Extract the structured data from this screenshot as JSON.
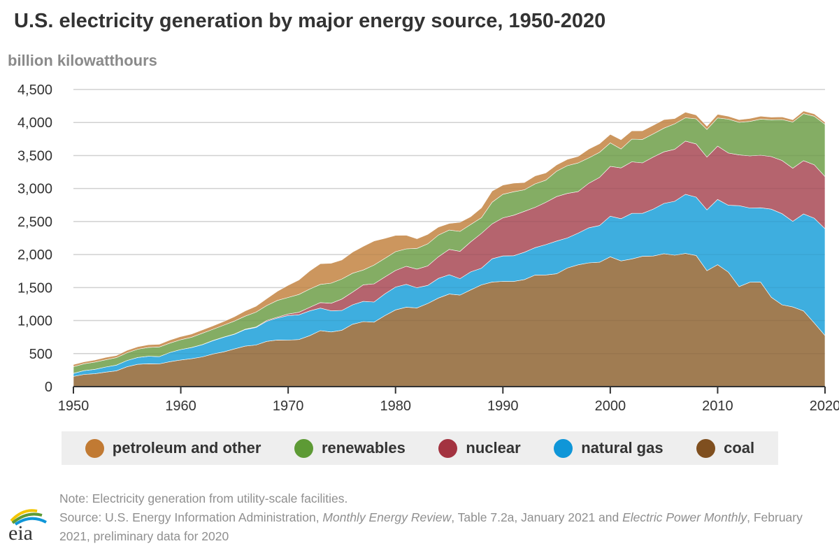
{
  "title": "U.S. electricity generation by major energy source, 1950-2020",
  "chart_data": {
    "type": "area",
    "stacked": true,
    "title": "U.S. electricity generation by major energy source, 1950-2020",
    "ylabel": "billion kilowatthours",
    "xlabel": "",
    "xlim": [
      1950,
      2020
    ],
    "ylim": [
      0,
      4500
    ],
    "yticks": [
      0,
      500,
      1000,
      1500,
      2000,
      2500,
      3000,
      3500,
      4000,
      4500
    ],
    "ytick_labels": [
      "0",
      "500",
      "1,000",
      "1,500",
      "2,000",
      "2,500",
      "3,000",
      "3,500",
      "4,000",
      "4,500"
    ],
    "xticks": [
      1950,
      1960,
      1970,
      1980,
      1990,
      2000,
      2010,
      2020
    ],
    "xtick_labels": [
      "1950",
      "1960",
      "1970",
      "1980",
      "1990",
      "2000",
      "2010",
      "2020"
    ],
    "grid": true,
    "legend_position": "bottom",
    "x_start": 1950,
    "series": [
      {
        "name": "coal",
        "color": "#a07c52",
        "legend_color": "#7f4f1f",
        "values": [
          155,
          185,
          195,
          219,
          239,
          301,
          338,
          346,
          344,
          378,
          403,
          422,
          450,
          494,
          526,
          571,
          613,
          630,
          685,
          706,
          704,
          713,
          771,
          848,
          828,
          853,
          944,
          985,
          976,
          1075,
          1162,
          1203,
          1192,
          1259,
          1342,
          1402,
          1386,
          1464,
          1541,
          1584,
          1594,
          1592,
          1621,
          1690,
          1691,
          1709,
          1796,
          1845,
          1874,
          1884,
          1966,
          1904,
          1933,
          1974,
          1978,
          2013,
          1991,
          2016,
          1986,
          1756,
          1847,
          1733,
          1514,
          1581,
          1582,
          1352,
          1239,
          1206,
          1146,
          965,
          774
        ]
      },
      {
        "name": "natural gas",
        "color": "#3eaedf",
        "legend_color": "#0f96d8",
        "values": [
          45,
          57,
          67,
          77,
          86,
          95,
          104,
          114,
          110,
          140,
          158,
          169,
          184,
          202,
          220,
          222,
          251,
          265,
          304,
          333,
          373,
          374,
          376,
          341,
          320,
          300,
          295,
          306,
          305,
          329,
          346,
          346,
          305,
          274,
          297,
          292,
          249,
          273,
          253,
          352,
          385,
          390,
          414,
          415,
          460,
          496,
          455,
          479,
          531,
          556,
          615,
          639,
          691,
          650,
          710,
          761,
          816,
          897,
          883,
          921,
          988,
          1014,
          1226,
          1124,
          1126,
          1335,
          1379,
          1297,
          1469,
          1586,
          1617
        ]
      },
      {
        "name": "nuclear",
        "color": "#b5646e",
        "legend_color": "#a33340",
        "values": [
          0,
          0,
          0,
          0,
          0,
          0,
          0,
          0,
          0.2,
          0.2,
          0.5,
          1.7,
          2.3,
          3.2,
          3.3,
          3.7,
          5.5,
          7.7,
          12.5,
          13.9,
          21.8,
          38.1,
          54.1,
          83.5,
          114,
          173,
          191,
          251,
          276,
          255,
          251,
          273,
          283,
          294,
          328,
          384,
          414,
          455,
          527,
          529,
          577,
          613,
          619,
          610,
          640,
          673,
          675,
          629,
          674,
          728,
          754,
          769,
          780,
          764,
          789,
          782,
          787,
          806,
          806,
          799,
          807,
          790,
          769,
          789,
          797,
          797,
          806,
          805,
          807,
          809,
          790
        ]
      },
      {
        "name": "renewables",
        "color": "#84ad64",
        "legend_color": "#5d9a35",
        "values": [
          101,
          104,
          110,
          110,
          113,
          116,
          124,
          134,
          146,
          141,
          149,
          155,
          172,
          169,
          181,
          197,
          198,
          225,
          226,
          253,
          251,
          270,
          276,
          275,
          305,
          303,
          287,
          224,
          284,
          283,
          285,
          264,
          313,
          335,
          329,
          293,
          302,
          263,
          237,
          328,
          357,
          356,
          327,
          356,
          336,
          384,
          420,
          434,
          384,
          380,
          356,
          287,
          344,
          356,
          351,
          358,
          386,
          353,
          380,
          418,
          427,
          513,
          494,
          522,
          546,
          557,
          621,
          699,
          712,
          735,
          792
        ]
      },
      {
        "name": "petroleum and other",
        "color": "#cc965e",
        "legend_color": "#c17a33",
        "values": [
          34,
          29,
          30,
          37,
          32,
          37,
          38,
          40,
          40,
          47,
          48,
          49,
          49,
          52,
          57,
          65,
          79,
          89,
          104,
          138,
          184,
          220,
          274,
          314,
          301,
          289,
          320,
          358,
          365,
          303,
          246,
          206,
          146,
          144,
          120,
          100,
          137,
          118,
          149,
          170,
          140,
          130,
          110,
          120,
          110,
          95,
          95,
          100,
          135,
          130,
          130,
          140,
          125,
          130,
          130,
          130,
          80,
          85,
          60,
          50,
          55,
          45,
          40,
          45,
          45,
          40,
          40,
          35,
          40,
          35,
          30
        ]
      }
    ],
    "legend_order": [
      "petroleum and other",
      "renewables",
      "nuclear",
      "natural gas",
      "coal"
    ]
  },
  "notes": {
    "note": "Note: Electricity generation from utility-scale facilities.",
    "source_prefix": "Source: U.S. Energy Information Administration, ",
    "source_title1": "Monthly Energy Review",
    "source_mid": ", Table 7.2a, January 2021 and ",
    "source_title2": "Electric Power Monthly",
    "source_suffix": ", February 2021, preliminary data for 2020"
  },
  "logo": {
    "text": "eia"
  }
}
